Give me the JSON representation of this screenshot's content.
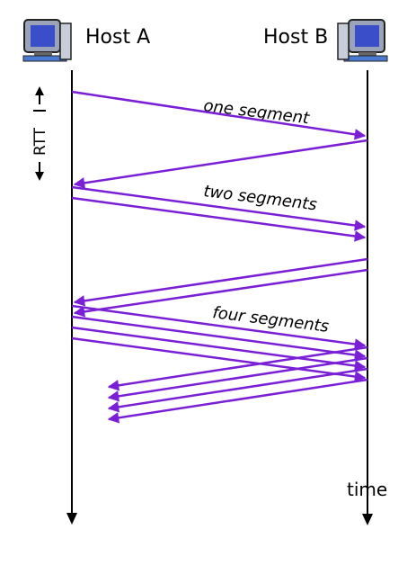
{
  "diagram": {
    "title_left": "Host A",
    "title_right": "Host B",
    "rtt_label": "RTT",
    "time_label": "time",
    "segment_labels": [
      "one segment",
      "two segments",
      "four segments"
    ],
    "colors": {
      "arrow": "#7a1fd6",
      "timeline": "#000000",
      "icon_screen": "#3a4ec9",
      "icon_body": "#9aa3b8"
    },
    "icons": [
      "computer-icon",
      "computer-icon"
    ]
  }
}
